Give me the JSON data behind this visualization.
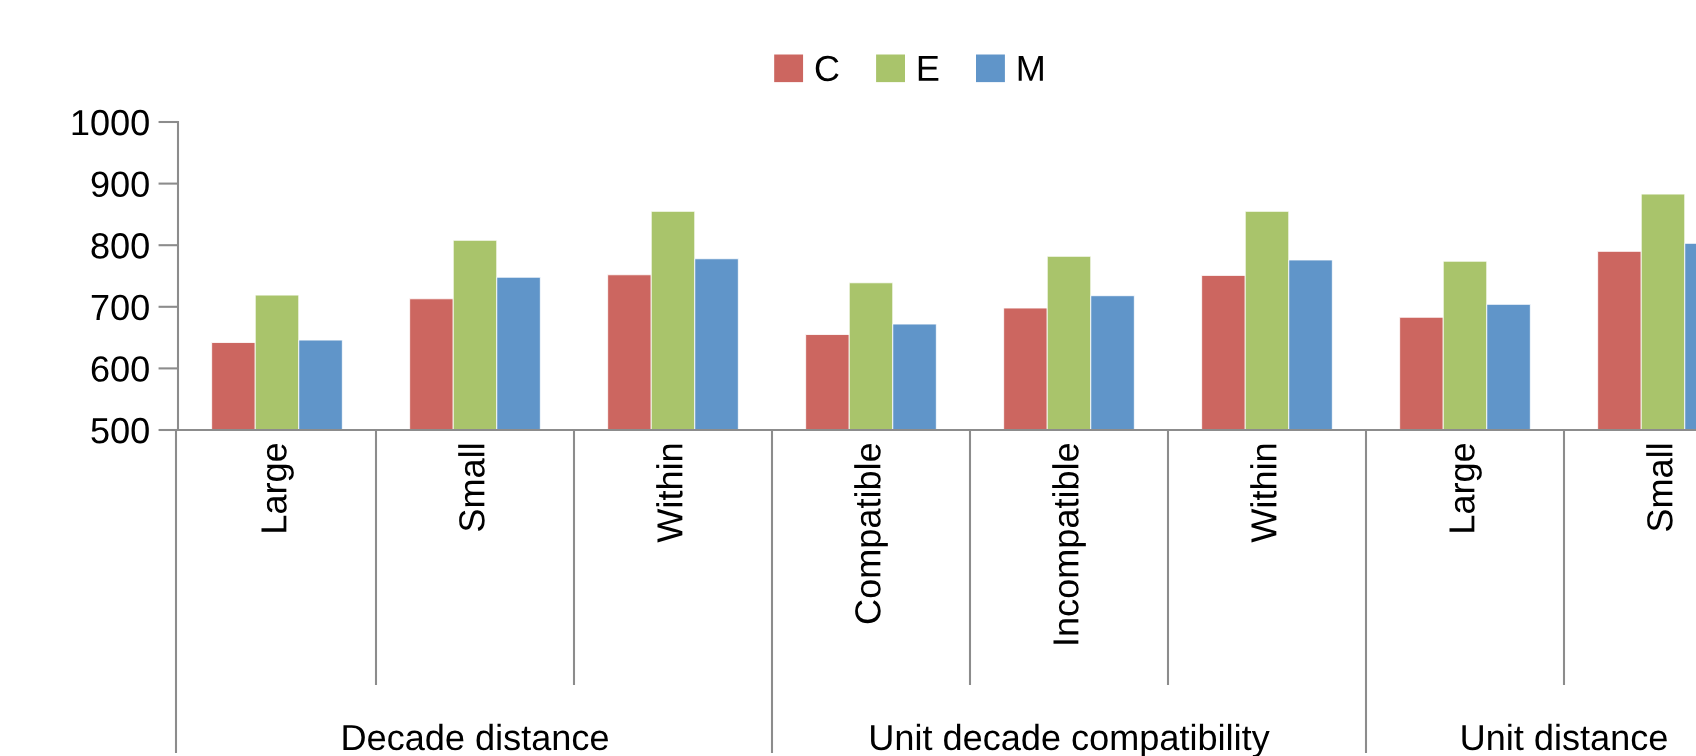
{
  "chart_data": {
    "type": "bar",
    "categories": [
      "Large",
      "Small",
      "Within",
      "Compatible",
      "Incompatible",
      "Within",
      "Large",
      "Small"
    ],
    "series": [
      {
        "name": "C",
        "color": "#cc6660",
        "values": [
          642,
          713,
          752,
          655,
          698,
          751,
          683,
          790
        ]
      },
      {
        "name": "E",
        "color": "#a9c46b",
        "values": [
          719,
          808,
          855,
          739,
          782,
          855,
          774,
          883
        ]
      },
      {
        "name": "M",
        "color": "#6095c9",
        "values": [
          646,
          748,
          778,
          672,
          718,
          776,
          704,
          803
        ]
      }
    ],
    "ylim": [
      500,
      1000
    ],
    "yticks": [
      500,
      600,
      700,
      800,
      900,
      1000
    ],
    "annotations": [
      "Decade distance",
      "Unit decade compatibility",
      "Unit distance"
    ],
    "grid": false,
    "legend": "top"
  }
}
